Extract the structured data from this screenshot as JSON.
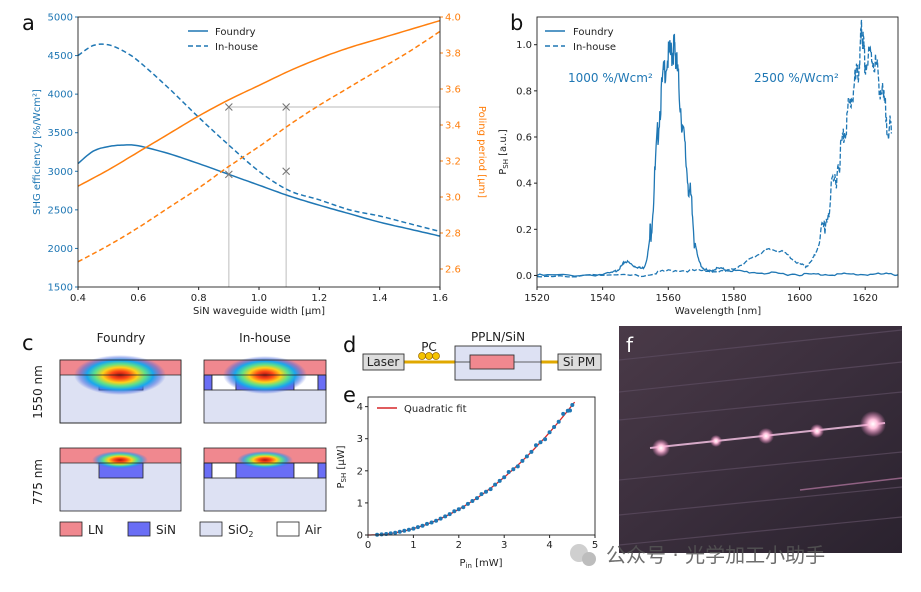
{
  "panel_labels": {
    "a": "a",
    "b": "b",
    "c": "c",
    "d": "d",
    "e": "e",
    "f": "f"
  },
  "colors": {
    "foundry": "#1f77b4",
    "inhouse": "#1f77b4",
    "poling": "#ff7f0e",
    "LN": "#f0888f",
    "SiN": "#6a6ef5",
    "SiO2": "#dde1f3",
    "Air": "#ffffff",
    "fit": "#d62728"
  },
  "chart_data": [
    {
      "panel": "a",
      "type": "line",
      "title": "",
      "xlabel": "SiN waveguide width [µm]",
      "ylabel": "SHG efficiency [%/Wcm²]",
      "y2label": "Poling period [µm]",
      "xlim": [
        0.4,
        1.6
      ],
      "ylim": [
        1500,
        5000
      ],
      "y2lim": [
        2.5,
        4.0
      ],
      "xticks": [
        "0.4",
        "0.6",
        "0.8",
        "1.0",
        "1.2",
        "1.4",
        "1.6"
      ],
      "yticks": [
        "1500",
        "2000",
        "2500",
        "3000",
        "3500",
        "4000",
        "4500",
        "5000"
      ],
      "y2ticks": [
        "2.6",
        "2.8",
        "3.0",
        "3.2",
        "3.4",
        "3.6",
        "3.8",
        "4.0"
      ],
      "legend": [
        "Foundry",
        "In-house"
      ],
      "series": [
        {
          "name": "Foundry",
          "axis": "left",
          "style": "solid",
          "x": [
            0.4,
            0.45,
            0.5,
            0.55,
            0.6,
            0.7,
            0.8,
            0.9,
            1.0,
            1.1,
            1.2,
            1.3,
            1.4,
            1.5,
            1.6
          ],
          "y": [
            3100,
            3260,
            3320,
            3340,
            3330,
            3230,
            3100,
            2960,
            2820,
            2680,
            2560,
            2450,
            2340,
            2250,
            2160
          ]
        },
        {
          "name": "In-house",
          "axis": "left",
          "style": "dashed",
          "x": [
            0.4,
            0.45,
            0.5,
            0.55,
            0.6,
            0.7,
            0.8,
            0.9,
            1.0,
            1.1,
            1.2,
            1.3,
            1.4,
            1.5,
            1.6
          ],
          "y": [
            4500,
            4630,
            4640,
            4560,
            4430,
            4080,
            3700,
            3340,
            3000,
            2750,
            2630,
            2500,
            2420,
            2320,
            2220
          ]
        },
        {
          "name": "Poling (Foundry)",
          "axis": "right",
          "style": "solid",
          "x": [
            0.4,
            0.5,
            0.6,
            0.7,
            0.8,
            0.9,
            1.0,
            1.1,
            1.2,
            1.3,
            1.4,
            1.5,
            1.6
          ],
          "y": [
            3.06,
            3.15,
            3.25,
            3.35,
            3.45,
            3.54,
            3.62,
            3.7,
            3.77,
            3.83,
            3.88,
            3.93,
            3.98
          ]
        },
        {
          "name": "Poling (In-house)",
          "axis": "right",
          "style": "dashed",
          "x": [
            0.4,
            0.5,
            0.6,
            0.7,
            0.8,
            0.9,
            1.0,
            1.1,
            1.2,
            1.3,
            1.4,
            1.5,
            1.6
          ],
          "y": [
            2.64,
            2.73,
            2.83,
            2.94,
            3.05,
            3.17,
            3.28,
            3.4,
            3.51,
            3.61,
            3.71,
            3.81,
            3.92
          ]
        }
      ],
      "markers": [
        {
          "series": "Foundry",
          "x": 0.9,
          "y": 2960
        },
        {
          "series": "In-house",
          "x": 1.09,
          "y": 3000
        },
        {
          "series": "Poling (Foundry)",
          "x": 0.9,
          "y": 3.5
        },
        {
          "series": "Poling (In-house)",
          "x": 1.09,
          "y": 3.5
        }
      ],
      "guide_lines": {
        "x": [
          0.9,
          1.09
        ],
        "y2": 3.5
      }
    },
    {
      "panel": "b",
      "type": "line",
      "xlabel": "Wavelength [nm]",
      "ylabel": "P_SH [a.u.]",
      "xlim": [
        1520,
        1630
      ],
      "ylim": [
        -0.05,
        1.12
      ],
      "xticks": [
        "1520",
        "1540",
        "1560",
        "1580",
        "1600",
        "1620"
      ],
      "yticks": [
        "0.0",
        "0.2",
        "0.4",
        "0.6",
        "0.8",
        "1.0"
      ],
      "legend": [
        "Foundry",
        "In-house"
      ],
      "annotations": [
        "1000 %/Wcm²",
        "2500 %/Wcm²"
      ],
      "series": [
        {
          "name": "Foundry",
          "style": "solid",
          "x": [
            1520,
            1540,
            1545,
            1547,
            1550,
            1553,
            1555,
            1557,
            1559,
            1561,
            1562,
            1563,
            1565,
            1567,
            1569,
            1572,
            1575,
            1580,
            1590,
            1600,
            1610,
            1620,
            1630
          ],
          "y": [
            0.0,
            0.005,
            0.03,
            0.06,
            0.04,
            0.05,
            0.25,
            0.65,
            0.9,
            0.96,
            0.98,
            0.85,
            0.55,
            0.3,
            0.08,
            0.02,
            0.03,
            0.02,
            0.01,
            0.005,
            0.005,
            0.005,
            0.005
          ]
        },
        {
          "name": "In-house",
          "style": "dashed",
          "x": [
            1520,
            1550,
            1560,
            1570,
            1578,
            1585,
            1590,
            1595,
            1600,
            1603,
            1606,
            1609,
            1612,
            1614,
            1616,
            1618,
            1619,
            1620,
            1622,
            1624,
            1626,
            1628
          ],
          "y": [
            0.0,
            0.0,
            0.02,
            0.02,
            0.02,
            0.07,
            0.11,
            0.1,
            0.05,
            0.05,
            0.14,
            0.3,
            0.5,
            0.65,
            0.78,
            0.9,
            1.05,
            0.92,
            0.95,
            0.86,
            0.72,
            0.6
          ]
        }
      ]
    },
    {
      "panel": "e",
      "type": "scatter",
      "xlabel": "P_in [mW]",
      "ylabel": "P_SH [µW]",
      "xlim": [
        0,
        5
      ],
      "ylim": [
        0,
        4.3
      ],
      "xticks": [
        "0",
        "1",
        "2",
        "3",
        "4",
        "5"
      ],
      "yticks": [
        "0",
        "1",
        "2",
        "3",
        "4"
      ],
      "legend": [
        "Quadratic fit"
      ],
      "fit": {
        "type": "quadratic",
        "a": 0.2
      },
      "x": [
        0.2,
        0.4,
        0.6,
        0.8,
        1.0,
        1.2,
        1.4,
        1.6,
        1.8,
        2.0,
        2.2,
        2.4,
        2.6,
        2.8,
        3.0,
        3.2,
        3.4,
        3.6,
        3.8,
        4.0,
        4.2,
        4.4,
        4.5
      ],
      "y": [
        0.01,
        0.03,
        0.07,
        0.13,
        0.2,
        0.29,
        0.39,
        0.51,
        0.65,
        0.8,
        0.97,
        1.15,
        1.35,
        1.57,
        1.8,
        2.05,
        2.31,
        2.59,
        2.89,
        3.2,
        3.53,
        3.87,
        4.05
      ]
    }
  ],
  "panel_c": {
    "columns": [
      "Foundry",
      "In-house"
    ],
    "rows": [
      "1550 nm",
      "775 nm"
    ],
    "legend": [
      {
        "label": "LN",
        "color_key": "LN"
      },
      {
        "label": "SiN",
        "color_key": "SiN"
      },
      {
        "label": "SiO",
        "sub": "2",
        "color_key": "SiO2"
      },
      {
        "label": "Air",
        "color_key": "Air"
      }
    ]
  },
  "panel_d": {
    "laser": "Laser",
    "pc": "PC",
    "chip": "PPLN/SiN",
    "detector": "Si PM"
  },
  "watermark": "公众号 · 光学加工小助手"
}
